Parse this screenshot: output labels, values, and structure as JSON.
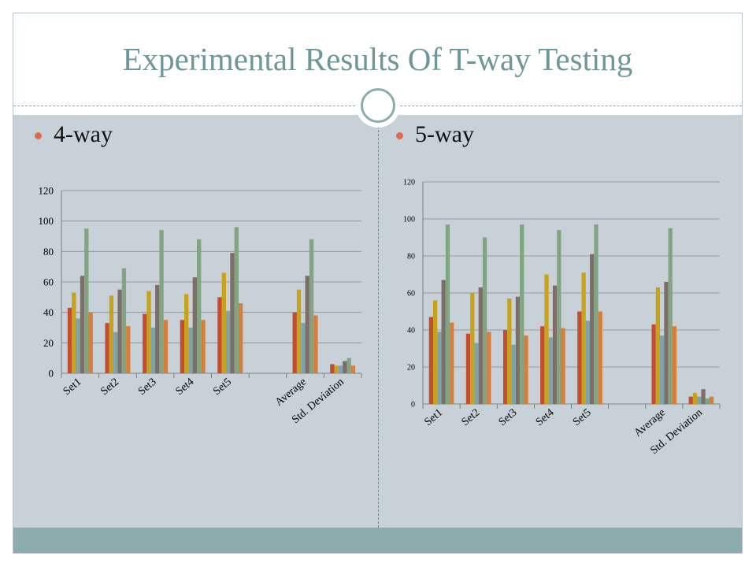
{
  "slide": {
    "title": "Experimental Results Of T-way Testing",
    "bullets": [
      "4-way",
      "5-way"
    ]
  },
  "colors": {
    "title": "#6e9797",
    "content_background": "#c7d1d7",
    "footer_band": "#8badad",
    "bullet_dot": "#df6b4e",
    "series": [
      "#c14e2f",
      "#c8a21a",
      "#7ea3ab",
      "#7d6f68",
      "#82a483",
      "#d67f3c"
    ]
  },
  "chart_data": [
    {
      "type": "bar",
      "categories": [
        "Set1",
        "Set2",
        "Set3",
        "Set4",
        "Set5",
        "",
        "Average",
        "Std. Deviation"
      ],
      "ylim": [
        0,
        120
      ],
      "yticks": [
        0,
        20,
        40,
        60,
        80,
        100,
        120
      ],
      "grid": true,
      "legend": "none",
      "series": [
        {
          "values": [
            43,
            33,
            39,
            35,
            50,
            null,
            40,
            6
          ]
        },
        {
          "values": [
            53,
            51,
            54,
            52,
            66,
            null,
            55,
            5
          ]
        },
        {
          "values": [
            36,
            27,
            30,
            30,
            41,
            null,
            33,
            5
          ]
        },
        {
          "values": [
            64,
            55,
            58,
            63,
            79,
            null,
            64,
            8
          ]
        },
        {
          "values": [
            95,
            69,
            94,
            88,
            96,
            null,
            88,
            10
          ]
        },
        {
          "values": [
            40,
            31,
            35,
            35,
            46,
            null,
            38,
            5
          ]
        }
      ]
    },
    {
      "type": "bar",
      "categories": [
        "Set1",
        "Set2",
        "Set3",
        "Set4",
        "Set5",
        "",
        "Average",
        "Std. Deviation"
      ],
      "ylim": [
        0,
        120
      ],
      "yticks": [
        0,
        20,
        40,
        60,
        80,
        100,
        120
      ],
      "grid": true,
      "legend": "none",
      "series": [
        {
          "values": [
            47,
            38,
            40,
            42,
            50,
            null,
            43,
            4
          ]
        },
        {
          "values": [
            56,
            60,
            57,
            70,
            71,
            null,
            63,
            6
          ]
        },
        {
          "values": [
            39,
            33,
            32,
            36,
            45,
            null,
            37,
            4
          ]
        },
        {
          "values": [
            67,
            63,
            58,
            64,
            81,
            null,
            66,
            8
          ]
        },
        {
          "values": [
            97,
            90,
            97,
            94,
            97,
            null,
            95,
            3
          ]
        },
        {
          "values": [
            44,
            39,
            37,
            41,
            50,
            null,
            42,
            4
          ]
        }
      ]
    }
  ]
}
